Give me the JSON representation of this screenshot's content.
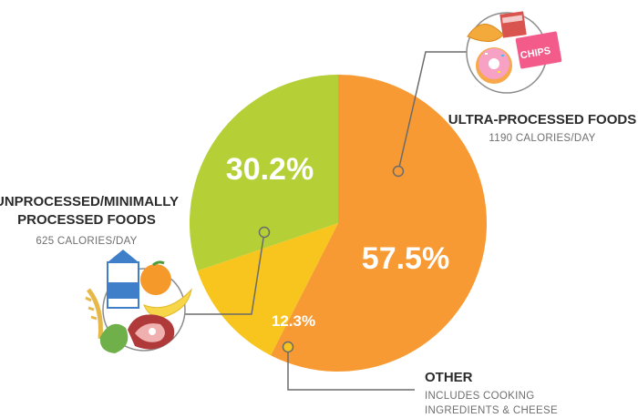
{
  "chart_data": {
    "type": "pie",
    "slices": [
      {
        "label": "ULTRA-PROCESSED FOODS",
        "detail": "1190 CALORIES/DAY",
        "value": 57.5,
        "value_label": "57.5%",
        "color": "#f79a33"
      },
      {
        "label": "OTHER",
        "detail": "INCLUDES COOKING INGREDIENTS & CHEESE",
        "value": 12.3,
        "value_label": "12.3%",
        "color": "#f7c51e"
      },
      {
        "label": "UNPROCESSED/MINIMALLY PROCESSED FOODS",
        "detail": "625 CALORIES/DAY",
        "value": 30.2,
        "value_label": "30.2%",
        "color": "#b5cf36"
      }
    ]
  },
  "labels": {
    "ultra_title": "ULTRA-PROCESSED FOODS",
    "ultra_sub": "1190 CALORIES/DAY",
    "unproc_title_1": "UNPROCESSED/MINIMALLY",
    "unproc_title_2": "PROCESSED FOODS",
    "unproc_sub": "625 CALORIES/DAY",
    "other_title": "OTHER",
    "other_sub_1": "INCLUDES COOKING",
    "other_sub_2": "INGREDIENTS & CHEESE",
    "chips_text": "CHIPS"
  },
  "icons": {
    "ultra": "junk-food-icon",
    "unprocessed": "whole-food-icon"
  },
  "colors": {
    "leader": "#6b6b6b",
    "icon_ring": "#8c8c8c"
  }
}
